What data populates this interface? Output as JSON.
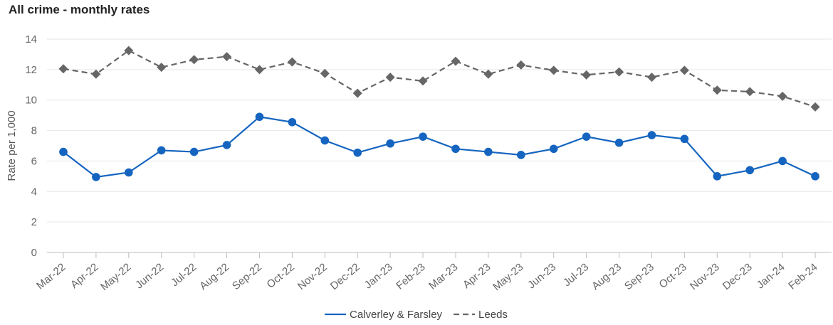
{
  "chart_data": {
    "type": "line",
    "title": "All crime - monthly rates",
    "ylabel": "Rate per 1,000",
    "xlabel": "",
    "ylim": [
      0,
      14
    ],
    "yticks": [
      0,
      2,
      4,
      6,
      8,
      10,
      12,
      14
    ],
    "grid": true,
    "legend_position": "bottom-center",
    "categories": [
      "Mar-22",
      "Apr-22",
      "May-22",
      "Jun-22",
      "Jul-22",
      "Aug-22",
      "Sep-22",
      "Oct-22",
      "Nov-22",
      "Dec-22",
      "Jan-23",
      "Feb-23",
      "Mar-23",
      "Apr-23",
      "May-23",
      "Jun-23",
      "Jul-23",
      "Aug-23",
      "Sep-23",
      "Oct-23",
      "Nov-23",
      "Dec-23",
      "Jan-24",
      "Feb-24"
    ],
    "series": [
      {
        "name": "Calverley & Farsley",
        "color": "#1565c0",
        "line_style": "solid",
        "marker": "circle",
        "values": [
          6.6,
          4.95,
          5.25,
          6.7,
          6.6,
          7.05,
          8.9,
          8.55,
          7.35,
          6.55,
          7.15,
          7.6,
          6.8,
          6.6,
          6.4,
          6.8,
          7.6,
          7.2,
          7.7,
          7.45,
          5.0,
          5.4,
          6.0,
          5.0
        ]
      },
      {
        "name": "Leeds",
        "color": "#666666",
        "line_style": "dashed",
        "marker": "diamond",
        "values": [
          12.05,
          11.7,
          13.25,
          12.15,
          12.65,
          12.85,
          12.0,
          12.5,
          11.75,
          10.45,
          11.5,
          11.25,
          12.55,
          11.7,
          12.3,
          11.95,
          11.65,
          11.85,
          11.5,
          11.95,
          10.65,
          10.55,
          10.25,
          9.55
        ]
      }
    ]
  }
}
